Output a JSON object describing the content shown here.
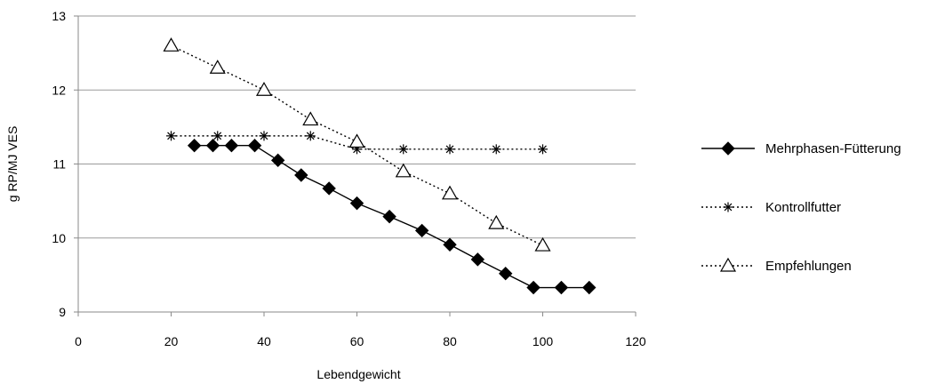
{
  "chart_data": {
    "type": "line",
    "title": "",
    "xlabel": "Lebendgewicht",
    "ylabel": "g RP/MJ VES",
    "xlim": [
      0,
      120
    ],
    "ylim": [
      9,
      13
    ],
    "x_ticks": [
      "0",
      "20",
      "40",
      "60",
      "80",
      "100",
      "120"
    ],
    "y_ticks": [
      "9",
      "10",
      "11",
      "12",
      "13"
    ],
    "grid": "horizontal",
    "legend_position": "right",
    "series": [
      {
        "name": "Mehrphasen-Fütterung",
        "marker": "diamond-filled",
        "line": "solid",
        "x": [
          25,
          29,
          33,
          38,
          43,
          48,
          54,
          60,
          67,
          74,
          80,
          86,
          92,
          98,
          104,
          110
        ],
        "y": [
          11.25,
          11.25,
          11.25,
          11.25,
          11.05,
          10.85,
          10.67,
          10.47,
          10.29,
          10.1,
          9.91,
          9.71,
          9.52,
          9.33,
          9.33,
          9.33
        ]
      },
      {
        "name": "Kontrollfutter",
        "marker": "asterisk",
        "line": "dotted",
        "x": [
          20,
          30,
          40,
          50,
          60,
          70,
          80,
          90,
          100
        ],
        "y": [
          11.38,
          11.38,
          11.38,
          11.38,
          11.2,
          11.2,
          11.2,
          11.2,
          11.2
        ]
      },
      {
        "name": "Empfehlungen",
        "marker": "triangle-open",
        "line": "dotted",
        "x": [
          20,
          30,
          40,
          50,
          60,
          70,
          80,
          90,
          100
        ],
        "y": [
          12.6,
          12.3,
          12.0,
          11.6,
          11.3,
          10.9,
          10.6,
          10.2,
          9.9
        ]
      }
    ]
  }
}
